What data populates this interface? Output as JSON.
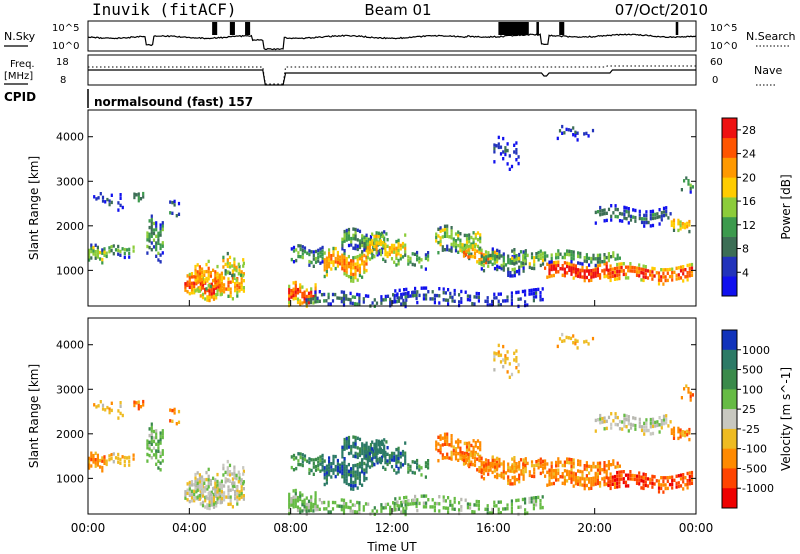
{
  "header": {
    "station": "Inuvik (fitACF)",
    "beam": "Beam 01",
    "date": "07/Oct/2010"
  },
  "noise_panel": {
    "left_label": "N.Sky",
    "right_label": "N.Search",
    "left_ticks": [
      "10^5",
      "10^0"
    ],
    "right_ticks": [
      "10^5",
      "10^0"
    ]
  },
  "freq_panel": {
    "left_label_1": "Freq.",
    "left_label_2": "[MHz]",
    "right_label": "Nave",
    "left_ticks": [
      "18",
      "8"
    ],
    "right_ticks": [
      "60",
      "0"
    ]
  },
  "cpid": {
    "label": "CPID",
    "value": "normalsound (fast) 157"
  },
  "colors": {
    "power": [
      "#1010ee",
      "#2233bb",
      "#3c6e55",
      "#3c9a4d",
      "#8ccc3a",
      "#ffcc00",
      "#ff9900",
      "#ff5500",
      "#ee1111"
    ],
    "velocity": [
      "#1133bb",
      "#2c7a66",
      "#3a8a4a",
      "#66bb44",
      "#c8c8c0",
      "#eebb22",
      "#ff8a00",
      "#ff4400",
      "#ee0000"
    ],
    "ground_scatter": "#b8b8b0"
  },
  "chart_data": [
    {
      "type": "heatmap",
      "name": "power",
      "ylabel": "Slant Range [km]",
      "xlabel": "",
      "y_ticks": [
        "4000",
        "3000",
        "2000",
        "1000"
      ],
      "y_tick_values": [
        4000,
        3000,
        2000,
        1000
      ],
      "ylim": [
        200,
        4600
      ],
      "xlim_hours": [
        0,
        24
      ],
      "colorbar_label": "Power [dB]",
      "colorbar_ticks": [
        "28",
        "24",
        "20",
        "16",
        "12",
        "8",
        "4"
      ],
      "colorbar_values": [
        28,
        24,
        20,
        16,
        12,
        8,
        4
      ],
      "colorbar_range": [
        0,
        30
      ]
    },
    {
      "type": "heatmap",
      "name": "velocity",
      "ylabel": "Slant Range [km]",
      "xlabel": "Time UT",
      "x_ticks": [
        "00:00",
        "04:00",
        "08:00",
        "12:00",
        "16:00",
        "20:00",
        "00:00"
      ],
      "x_tick_hours": [
        0,
        4,
        8,
        12,
        16,
        20,
        24
      ],
      "y_ticks": [
        "4000",
        "3000",
        "2000",
        "1000"
      ],
      "y_tick_values": [
        4000,
        3000,
        2000,
        1000
      ],
      "ylim": [
        200,
        4600
      ],
      "xlim_hours": [
        0,
        24
      ],
      "colorbar_label": "Velocity [m s^-1]",
      "colorbar_ticks": [
        "1000",
        "500",
        "100",
        "25",
        "-25",
        "-100",
        "-500",
        "-1000"
      ],
      "colorbar_scale": "nonlinear"
    }
  ]
}
